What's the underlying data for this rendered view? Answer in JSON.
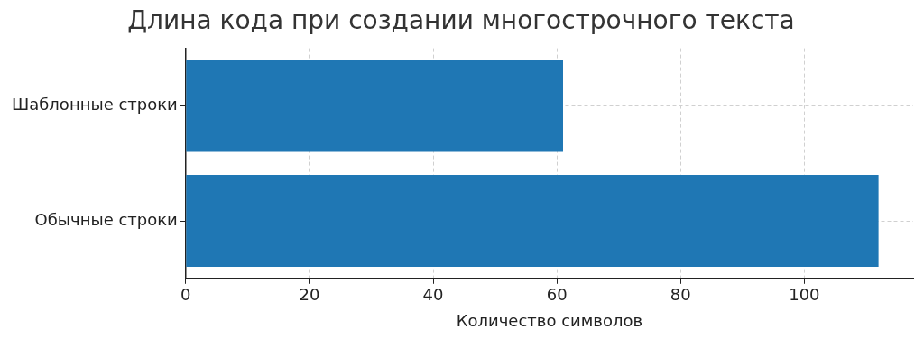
{
  "chart_data": {
    "type": "bar",
    "orientation": "horizontal",
    "title": "Длина кода при создании многострочного текста",
    "xlabel": "Количество символов",
    "categories": [
      "Шаблонные строки",
      "Обычные строки"
    ],
    "values": [
      61,
      112
    ],
    "color": "#1f77b4",
    "xlim": [
      0,
      117.6
    ],
    "xticks": [
      0,
      20,
      40,
      60,
      80,
      100
    ],
    "grid": true
  }
}
